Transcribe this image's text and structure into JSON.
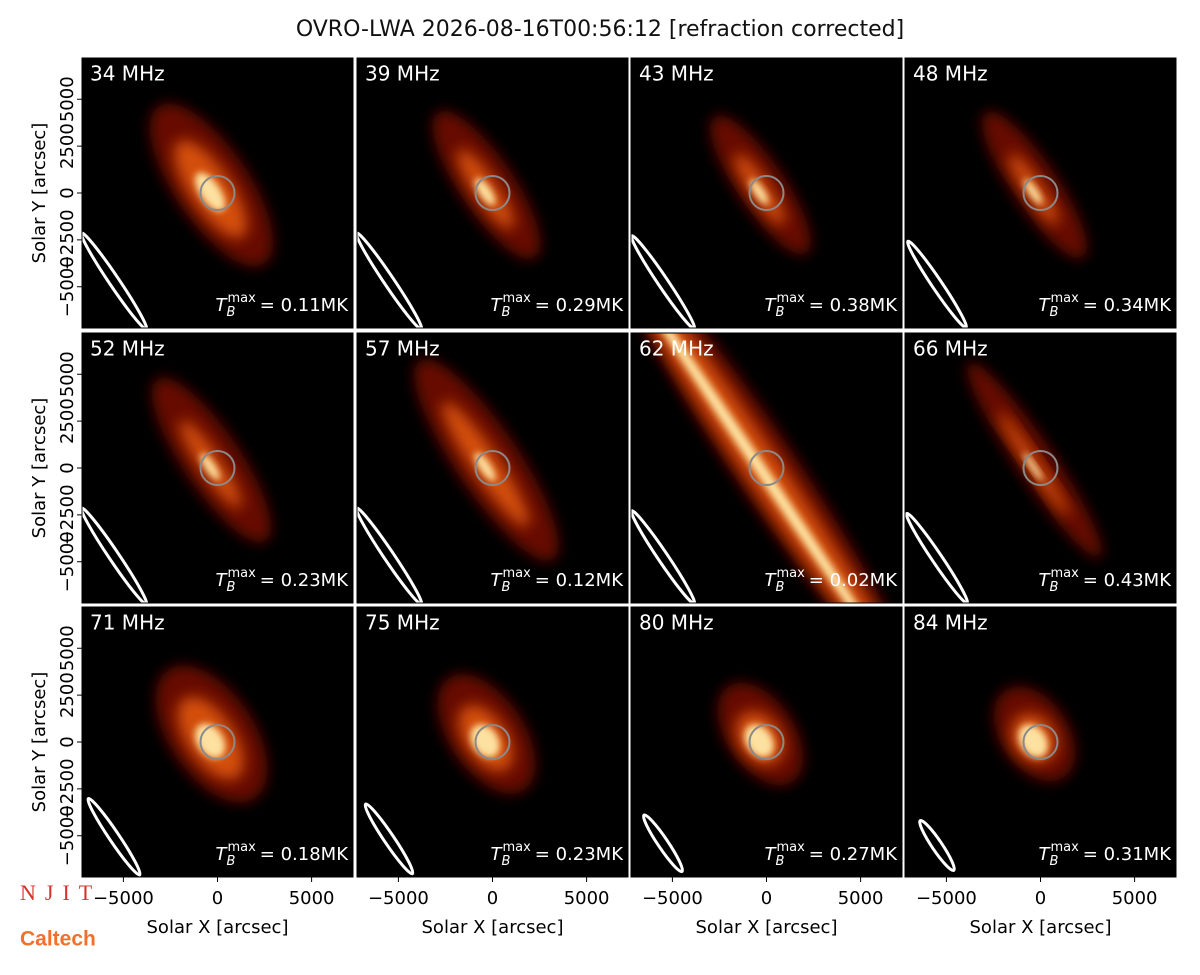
{
  "title": "OVRO-LWA 2026-08-16T00:56:12 [refraction corrected]",
  "logos": [
    "NJIT",
    "Caltech"
  ],
  "chart_data": [
    {
      "type": "image",
      "title": "34 MHz",
      "annotation": {
        "symbol": "T",
        "sub": "B",
        "sup": "max",
        "text": "= 0.11MK"
      },
      "xlim": [
        -7200,
        7200
      ],
      "ylim": [
        -7200,
        7200
      ],
      "ylabel": "Solar Y [arcsec]",
      "yticks": [
        {
          "value": -5000,
          "label": "−5000"
        },
        {
          "value": -2500,
          "label": "−2500"
        },
        0,
        2500,
        5000
      ]
    },
    {
      "type": "image",
      "title": "39 MHz",
      "annotation": {
        "symbol": "T",
        "sub": "B",
        "sup": "max",
        "text": "= 0.29MK"
      },
      "xlim": [
        -7200,
        7200
      ],
      "ylim": [
        -7200,
        7200
      ]
    },
    {
      "type": "image",
      "title": "43 MHz",
      "annotation": {
        "symbol": "T",
        "sub": "B",
        "sup": "max",
        "text": "= 0.38MK"
      },
      "xlim": [
        -7200,
        7200
      ],
      "ylim": [
        -7200,
        7200
      ]
    },
    {
      "type": "image",
      "title": "48 MHz",
      "annotation": {
        "symbol": "T",
        "sub": "B",
        "sup": "max",
        "text": "= 0.34MK"
      },
      "xlim": [
        -7200,
        7200
      ],
      "ylim": [
        -7200,
        7200
      ]
    },
    {
      "type": "image",
      "title": "52 MHz",
      "annotation": {
        "symbol": "T",
        "sub": "B",
        "sup": "max",
        "text": "= 0.23MK"
      },
      "xlim": [
        -7200,
        7200
      ],
      "ylim": [
        -7200,
        7200
      ],
      "ylabel": "Solar Y [arcsec]",
      "yticks": [
        {
          "value": -5000,
          "label": "−5000"
        },
        {
          "value": -2500,
          "label": "−2500"
        },
        0,
        2500,
        5000
      ]
    },
    {
      "type": "image",
      "title": "57 MHz",
      "annotation": {
        "symbol": "T",
        "sub": "B",
        "sup": "max",
        "text": "= 0.12MK"
      },
      "xlim": [
        -7200,
        7200
      ],
      "ylim": [
        -7200,
        7200
      ]
    },
    {
      "type": "image",
      "title": "62 MHz",
      "annotation": {
        "symbol": "T",
        "sub": "B",
        "sup": "max",
        "text": "= 0.02MK"
      },
      "xlim": [
        -7200,
        7200
      ],
      "ylim": [
        -7200,
        7200
      ]
    },
    {
      "type": "image",
      "title": "66 MHz",
      "annotation": {
        "symbol": "T",
        "sub": "B",
        "sup": "max",
        "text": "= 0.43MK"
      },
      "xlim": [
        -7200,
        7200
      ],
      "ylim": [
        -7200,
        7200
      ]
    },
    {
      "type": "image",
      "title": "71 MHz",
      "annotation": {
        "symbol": "T",
        "sub": "B",
        "sup": "max",
        "text": "= 0.18MK"
      },
      "xlim": [
        -7200,
        7200
      ],
      "ylim": [
        -7200,
        7200
      ],
      "ylabel": "Solar Y [arcsec]",
      "yticks": [
        {
          "value": -5000,
          "label": "−5000"
        },
        {
          "value": -2500,
          "label": "−2500"
        },
        0,
        2500,
        5000
      ],
      "xlabel": "Solar X [arcsec]",
      "xticks": [
        {
          "value": -5000,
          "label": "−5000"
        },
        0,
        5000
      ]
    },
    {
      "type": "image",
      "title": "75 MHz",
      "annotation": {
        "symbol": "T",
        "sub": "B",
        "sup": "max",
        "text": "= 0.23MK"
      },
      "xlim": [
        -7200,
        7200
      ],
      "ylim": [
        -7200,
        7200
      ],
      "xlabel": "Solar X [arcsec]",
      "xticks": [
        {
          "value": -5000,
          "label": "−5000"
        },
        0,
        5000
      ]
    },
    {
      "type": "image",
      "title": "80 MHz",
      "annotation": {
        "symbol": "T",
        "sub": "B",
        "sup": "max",
        "text": "= 0.27MK"
      },
      "xlim": [
        -7200,
        7200
      ],
      "ylim": [
        -7200,
        7200
      ],
      "xlabel": "Solar X [arcsec]",
      "xticks": [
        {
          "value": -5000,
          "label": "−5000"
        },
        0,
        5000
      ]
    },
    {
      "type": "image",
      "title": "84 MHz",
      "annotation": {
        "symbol": "T",
        "sub": "B",
        "sup": "max",
        "text": "= 0.31MK"
      },
      "xlim": [
        -7200,
        7200
      ],
      "ylim": [
        -7200,
        7200
      ],
      "xlabel": "Solar X [arcsec]",
      "xticks": [
        {
          "value": -5000,
          "label": "−5000"
        },
        0,
        5000
      ]
    }
  ]
}
